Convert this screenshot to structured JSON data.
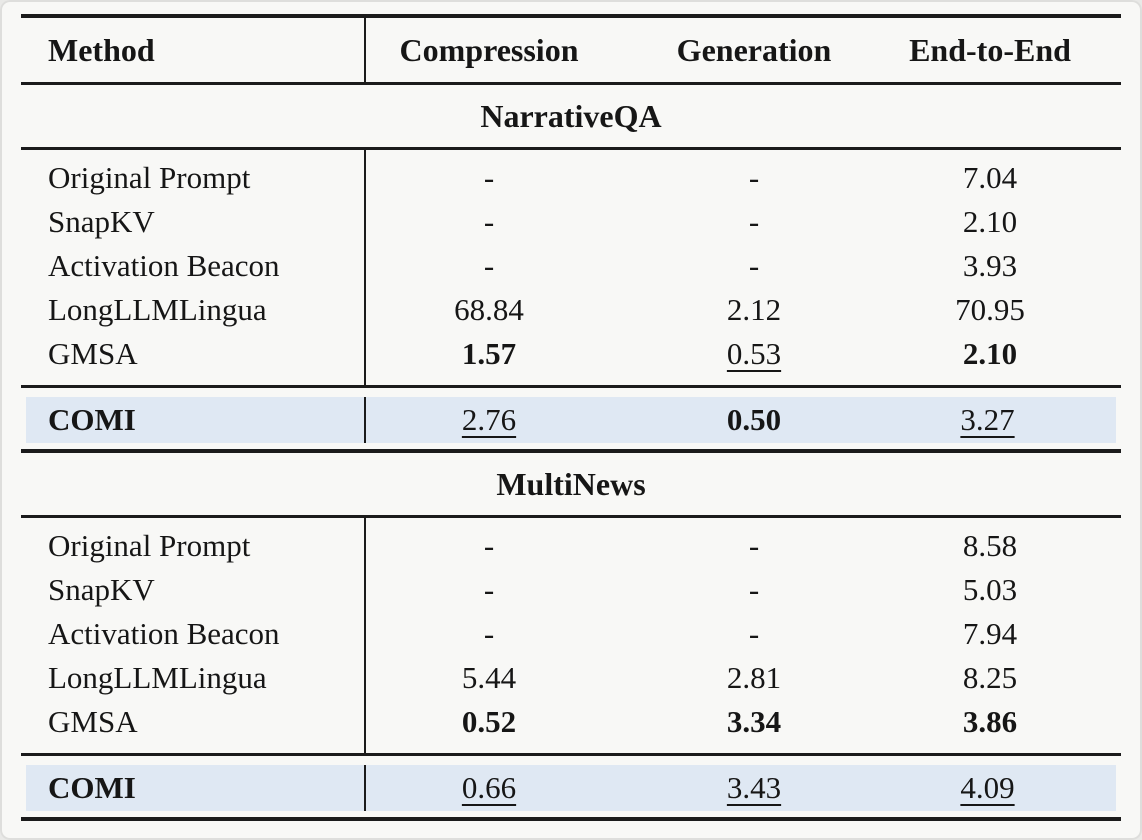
{
  "colors": {
    "background": "#f8f8f6",
    "rule": "#1b1b1b",
    "highlight_row_background": "#dfe8f3",
    "text": "#161616"
  },
  "table": {
    "columns": [
      "Method",
      "Compression",
      "Generation",
      "End-to-End"
    ],
    "sections": [
      {
        "title": "NarrativeQA",
        "rows": [
          {
            "method": "Original Prompt",
            "values": [
              {
                "text": "-"
              },
              {
                "text": "-"
              },
              {
                "text": "7.04"
              }
            ]
          },
          {
            "method": "SnapKV",
            "values": [
              {
                "text": "-"
              },
              {
                "text": "-"
              },
              {
                "text": "2.10"
              }
            ]
          },
          {
            "method": "Activation Beacon",
            "values": [
              {
                "text": "-"
              },
              {
                "text": "-"
              },
              {
                "text": "3.93"
              }
            ]
          },
          {
            "method": "LongLLMLingua",
            "values": [
              {
                "text": "68.84"
              },
              {
                "text": "2.12"
              },
              {
                "text": "70.95"
              }
            ]
          },
          {
            "method": "GMSA",
            "values": [
              {
                "text": "1.57",
                "bold": true
              },
              {
                "text": "0.53",
                "underline": true
              },
              {
                "text": "2.10",
                "bold": true
              }
            ]
          }
        ],
        "highlight_row": {
          "method": "COMI",
          "values": [
            {
              "text": "2.76",
              "underline": true
            },
            {
              "text": "0.50",
              "bold": true
            },
            {
              "text": "3.27",
              "underline": true
            }
          ]
        }
      },
      {
        "title": "MultiNews",
        "rows": [
          {
            "method": "Original Prompt",
            "values": [
              {
                "text": "-"
              },
              {
                "text": "-"
              },
              {
                "text": "8.58"
              }
            ]
          },
          {
            "method": "SnapKV",
            "values": [
              {
                "text": "-"
              },
              {
                "text": "-"
              },
              {
                "text": "5.03"
              }
            ]
          },
          {
            "method": "Activation Beacon",
            "values": [
              {
                "text": "-"
              },
              {
                "text": "-"
              },
              {
                "text": "7.94"
              }
            ]
          },
          {
            "method": "LongLLMLingua",
            "values": [
              {
                "text": "5.44"
              },
              {
                "text": "2.81"
              },
              {
                "text": "8.25"
              }
            ]
          },
          {
            "method": "GMSA",
            "values": [
              {
                "text": "0.52",
                "bold": true
              },
              {
                "text": "3.34",
                "bold": true
              },
              {
                "text": "3.86",
                "bold": true
              }
            ]
          }
        ],
        "highlight_row": {
          "method": "COMI",
          "values": [
            {
              "text": "0.66",
              "underline": true
            },
            {
              "text": "3.43",
              "underline": true
            },
            {
              "text": "4.09",
              "underline": true
            }
          ]
        }
      }
    ]
  }
}
